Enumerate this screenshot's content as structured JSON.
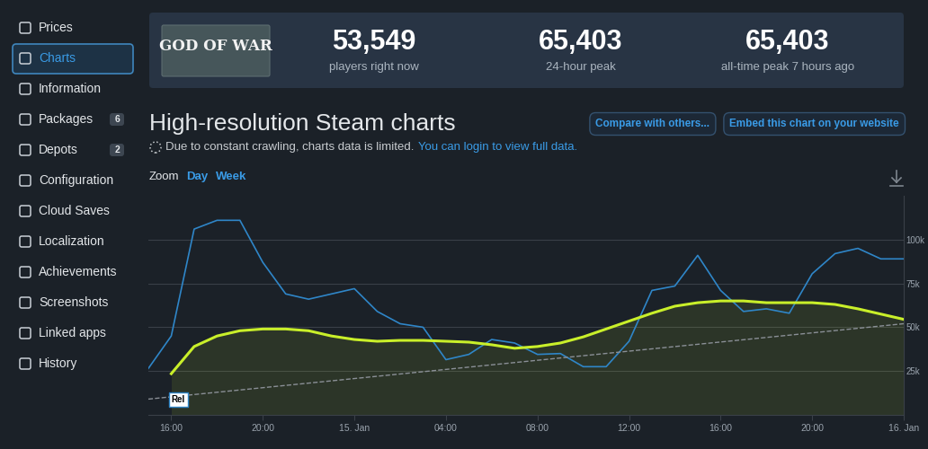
{
  "sidebar": {
    "active": "Charts",
    "items": [
      {
        "label": "Prices"
      },
      {
        "label": "Charts"
      },
      {
        "label": "Information"
      },
      {
        "label": "Packages",
        "badge": "6"
      },
      {
        "label": "Depots",
        "badge": "2"
      },
      {
        "label": "Configuration"
      },
      {
        "label": "Cloud Saves"
      },
      {
        "label": "Localization"
      },
      {
        "label": "Achievements"
      },
      {
        "label": "Screenshots"
      },
      {
        "label": "Linked apps"
      },
      {
        "label": "History"
      }
    ]
  },
  "header": {
    "logo": "GOD OF WAR",
    "stats": [
      {
        "value": "53,549",
        "label": "players right now"
      },
      {
        "value": "65,403",
        "label": "24-hour peak"
      },
      {
        "value": "65,403",
        "label": "all-time peak 7 hours ago"
      }
    ]
  },
  "page": {
    "title": "High-resolution Steam charts",
    "notice": "Due to constant crawling, charts data is limited.",
    "notice_link": "You can login to view full data.",
    "buttons": [
      "Compare with others...",
      "Embed this chart on your website"
    ],
    "zoom_label": "Zoom",
    "zoom_options": [
      "Day",
      "Week"
    ]
  },
  "chart_data": {
    "type": "line",
    "xlim": [
      15,
      48
    ],
    "xticks": [
      {
        "value": 16,
        "label": "16:00"
      },
      {
        "value": 20,
        "label": "20:00"
      },
      {
        "value": 24,
        "label": "15. Jan"
      },
      {
        "value": 28,
        "label": "04:00"
      },
      {
        "value": 32,
        "label": "08:00"
      },
      {
        "value": 36,
        "label": "12:00"
      },
      {
        "value": 40,
        "label": "16:00"
      },
      {
        "value": 44,
        "label": "20:00"
      },
      {
        "value": 48,
        "label": "16. Jan"
      }
    ],
    "ylim": [
      0,
      125000
    ],
    "yticks": [
      {
        "value": 25000,
        "label": "25k"
      },
      {
        "value": 50000,
        "label": "50k"
      },
      {
        "value": 75000,
        "label": "75k"
      },
      {
        "value": 100000,
        "label": "100k"
      }
    ],
    "grid": true,
    "series": [
      {
        "type": "line",
        "color": "#2f86c8",
        "line_style": "solid",
        "x": [
          15,
          16,
          17,
          18,
          19,
          20,
          21,
          22,
          23,
          24,
          25,
          26,
          27,
          28,
          29,
          30,
          31,
          32,
          33,
          34,
          35,
          36,
          37,
          38,
          39,
          40,
          41,
          42,
          43,
          44,
          45,
          46,
          47,
          48
        ],
        "values": [
          26500,
          45000,
          106000,
          111000,
          111000,
          87000,
          69000,
          66000,
          69000,
          72000,
          59000,
          52000,
          50000,
          31500,
          34500,
          43000,
          41000,
          34500,
          35000,
          27500,
          27500,
          42000,
          71000,
          73500,
          91000,
          71000,
          59000,
          60500,
          58000,
          80500,
          92000,
          95000,
          89000,
          89000
        ]
      },
      {
        "type": "area",
        "color": "#c9ef2a",
        "line_style": "solid",
        "x": [
          16,
          17,
          18,
          19,
          20,
          21,
          22,
          23,
          24,
          25,
          26,
          27,
          28,
          29,
          30,
          31,
          32,
          33,
          34,
          35,
          36,
          37,
          38,
          39,
          40,
          41,
          42,
          43,
          44,
          45,
          46,
          47,
          48
        ],
        "values": [
          23500,
          39000,
          45000,
          48000,
          49000,
          49000,
          48000,
          45000,
          43000,
          42000,
          42500,
          42500,
          42000,
          41500,
          40000,
          38000,
          39000,
          41000,
          44500,
          49000,
          53500,
          58000,
          62000,
          64000,
          65000,
          65000,
          64000,
          64000,
          64000,
          63000,
          60500,
          57500,
          54500
        ]
      },
      {
        "type": "line",
        "color": "#8a8f96",
        "line_style": "dashed",
        "x": [
          15,
          48
        ],
        "values": [
          9000,
          52000
        ]
      }
    ],
    "annotations": [
      {
        "x": 16,
        "text": "Rel"
      }
    ]
  }
}
